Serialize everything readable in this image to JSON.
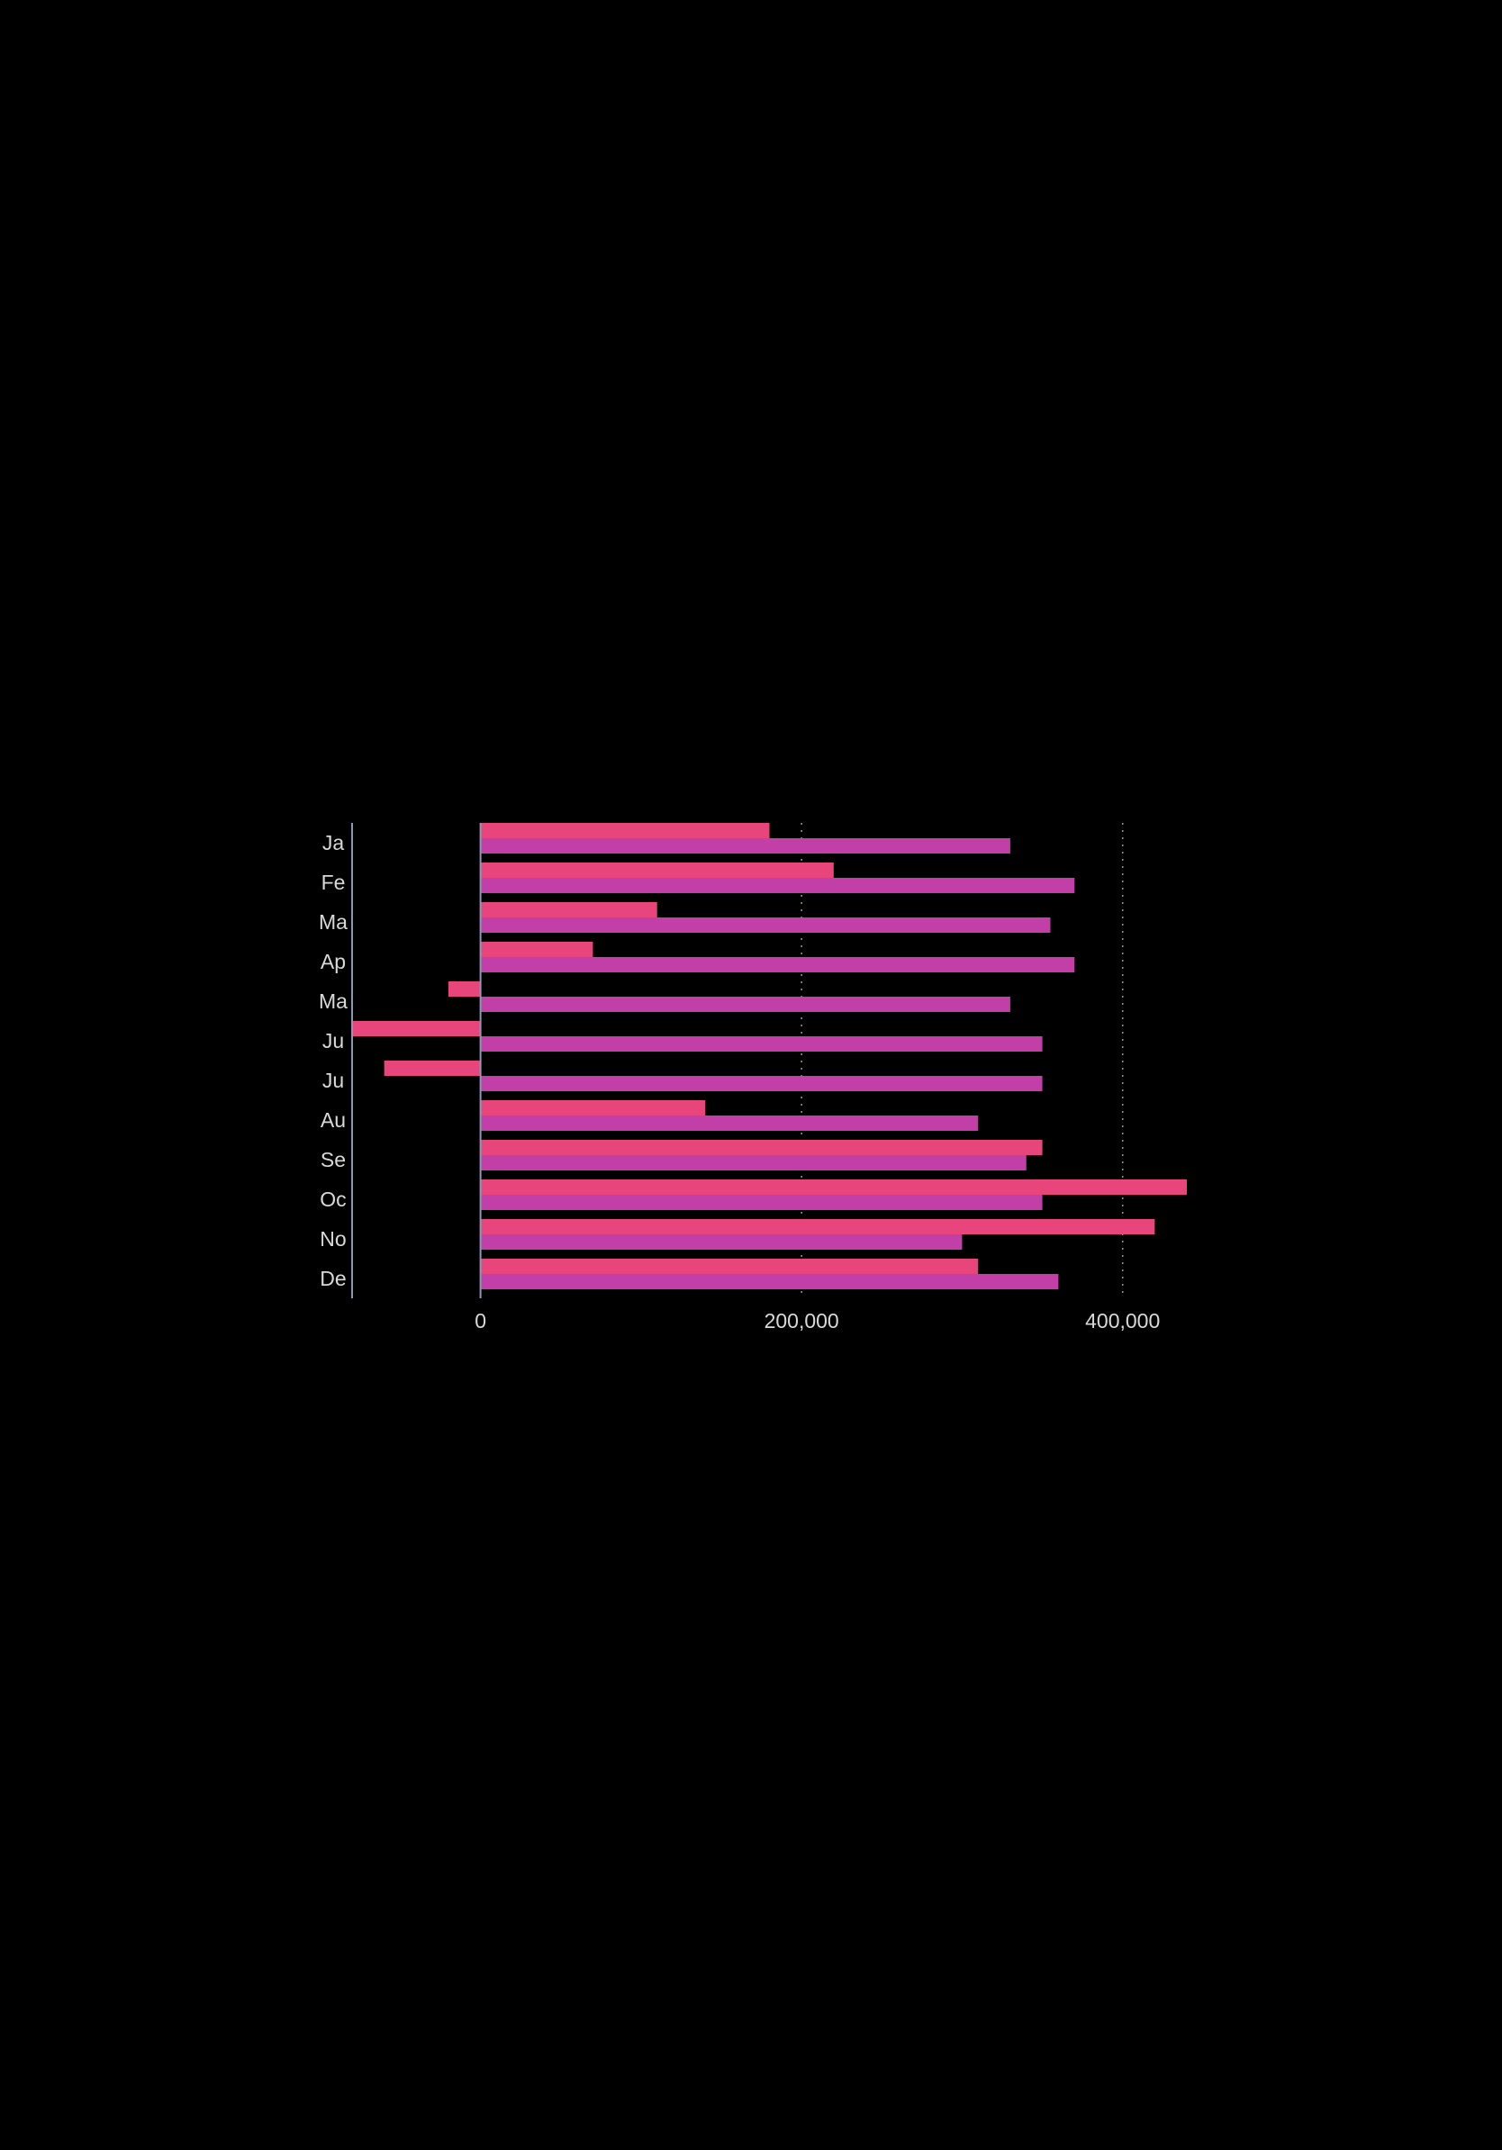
{
  "colors": {
    "background": "#000000",
    "series_a": "#E8457C",
    "series_b": "#C13FA6",
    "axis_line": "#8A9AB5",
    "grid": "#9A9A9A",
    "tick_label": "#D9D9D9"
  },
  "chart_data": {
    "type": "bar",
    "orientation": "horizontal",
    "categories": [
      "Ja",
      "Fe",
      "Ma",
      "Ap",
      "Ma",
      "Ju",
      "Ju",
      "Au",
      "Se",
      "Oc",
      "No",
      "De"
    ],
    "series": [
      {
        "values": [
          180000,
          220000,
          110000,
          70000,
          -20000,
          -80000,
          -60000,
          140000,
          350000,
          440000,
          420000,
          310000
        ]
      },
      {
        "values": [
          330000,
          370000,
          355000,
          370000,
          330000,
          350000,
          350000,
          310000,
          340000,
          350000,
          300000,
          360000
        ]
      }
    ],
    "x_ticks": [
      0,
      200000,
      400000
    ],
    "x_tick_labels": [
      "0",
      "200,000",
      "400,000"
    ],
    "xlim": [
      -80000,
      440000
    ],
    "grid": {
      "x": true,
      "style": "dotted"
    },
    "legend": "none",
    "title": "",
    "xlabel": "",
    "ylabel": ""
  }
}
